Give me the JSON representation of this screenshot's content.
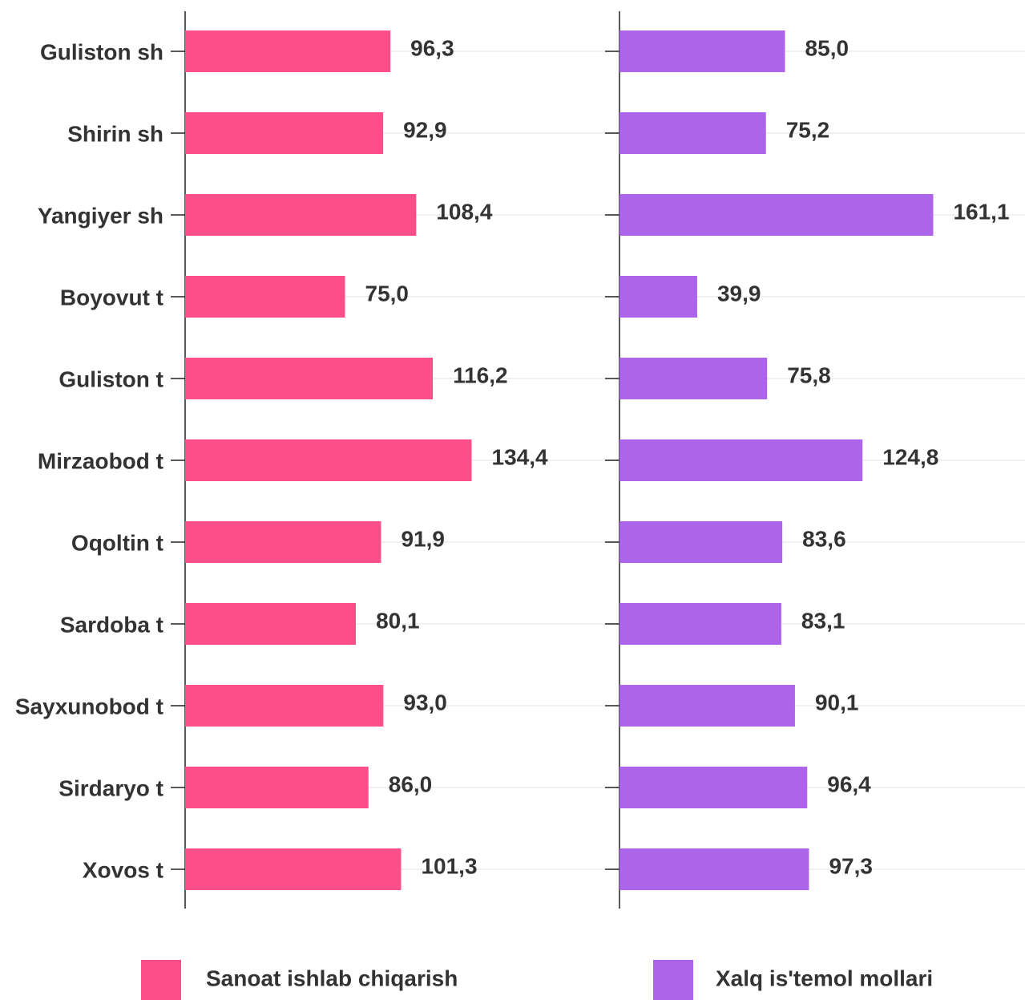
{
  "chart_data": {
    "type": "bar",
    "categories": [
      "Guliston sh",
      "Shirin sh",
      "Yangiyer sh",
      "Boyovut t",
      "Guliston t",
      "Mirzaobod t",
      "Oqoltin t",
      "Sardoba t",
      "Sayxunobod t",
      "Sirdaryo t",
      "Xovos t"
    ],
    "series": [
      {
        "name": "Sanoat ishlab chiqarish",
        "color": "#fc4f8a",
        "values": [
          96.3,
          92.9,
          108.4,
          75.0,
          116.2,
          134.4,
          91.9,
          80.1,
          93.0,
          86.0,
          101.3
        ],
        "value_labels": [
          "96,3",
          "92,9",
          "108,4",
          "75,0",
          "116,2",
          "134,4",
          "91,9",
          "80,1",
          "93,0",
          "86,0",
          "101,3"
        ]
      },
      {
        "name": "Xalq is'temol mollari",
        "color": "#ad63ea",
        "values": [
          85.0,
          75.2,
          161.1,
          39.9,
          75.8,
          124.8,
          83.6,
          83.1,
          90.1,
          96.4,
          97.3
        ],
        "value_labels": [
          "85,0",
          "75,2",
          "161,1",
          "39,9",
          "75,8",
          "124,8",
          "83,6",
          "83,1",
          "90,1",
          "96,4",
          "97,3"
        ]
      }
    ]
  }
}
